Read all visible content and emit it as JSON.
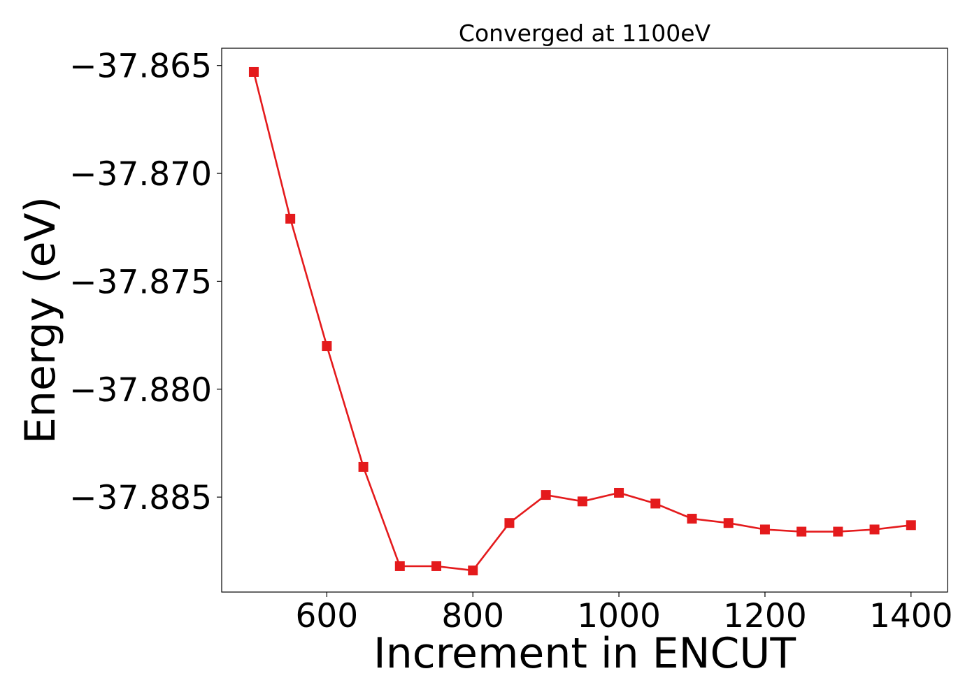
{
  "chart_data": {
    "type": "line",
    "title": "Converged at 1100eV",
    "xlabel": "Increment in ENCUT",
    "ylabel": "Energy (eV)",
    "xlim": [
      456,
      1450
    ],
    "ylim": [
      -37.8894,
      -37.8642
    ],
    "x_ticks": [
      600,
      800,
      1000,
      1200,
      1400
    ],
    "x_tick_labels": [
      "600",
      "800",
      "1000",
      "1200",
      "1400"
    ],
    "y_ticks": [
      -37.865,
      -37.87,
      -37.875,
      -37.88,
      -37.885
    ],
    "y_tick_labels": [
      "−37.865",
      "−37.870",
      "−37.875",
      "−37.880",
      "−37.885"
    ],
    "grid": false,
    "series": [
      {
        "color": "#e41a1c",
        "marker": "square",
        "x": [
          500,
          550,
          600,
          650,
          700,
          750,
          800,
          850,
          900,
          950,
          1000,
          1050,
          1100,
          1150,
          1200,
          1250,
          1300,
          1350,
          1400
        ],
        "y": [
          -37.8653,
          -37.8721,
          -37.878,
          -37.8836,
          -37.8882,
          -37.8882,
          -37.8884,
          -37.8862,
          -37.8849,
          -37.8852,
          -37.8848,
          -37.8853,
          -37.886,
          -37.8862,
          -37.8865,
          -37.8866,
          -37.8866,
          -37.8865,
          -37.8863
        ]
      }
    ]
  }
}
